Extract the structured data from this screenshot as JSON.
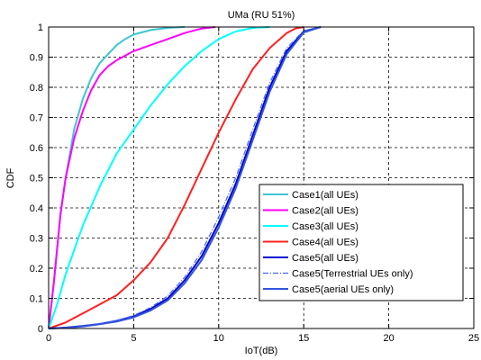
{
  "chart_data": {
    "type": "line",
    "title": "UMa (RU 51%)",
    "xlabel": "IoT(dB)",
    "ylabel": "CDF",
    "xlim": [
      0,
      25
    ],
    "ylim": [
      0,
      1
    ],
    "xticks": [
      "0",
      "5",
      "10",
      "15",
      "20",
      "25"
    ],
    "yticks": [
      "0",
      "0.1",
      "0.2",
      "0.3",
      "0.4",
      "0.5",
      "0.6",
      "0.7",
      "0.8",
      "0.9",
      "1"
    ],
    "grid": true,
    "legend_position": "lower-right",
    "series": [
      {
        "name": "Case1(all UEs)",
        "color": "#3cc6d2",
        "style": "solid",
        "x": [
          0,
          0.3,
          0.7,
          1.0,
          1.5,
          2.0,
          2.5,
          3.0,
          3.5,
          4.0,
          4.5,
          5.0,
          6.0,
          7.0,
          8.0
        ],
        "y": [
          0,
          0.15,
          0.38,
          0.5,
          0.66,
          0.76,
          0.83,
          0.88,
          0.91,
          0.94,
          0.96,
          0.975,
          0.99,
          0.997,
          1.0
        ]
      },
      {
        "name": "Case2(all UEs)",
        "color": "#ff00ff",
        "style": "solid",
        "x": [
          0,
          0.3,
          0.7,
          1.0,
          1.5,
          2.0,
          2.5,
          3.0,
          3.5,
          4.0,
          5.0,
          6.0,
          7.0,
          8.0,
          9.0,
          9.8
        ],
        "y": [
          0,
          0.15,
          0.38,
          0.5,
          0.63,
          0.72,
          0.79,
          0.84,
          0.87,
          0.89,
          0.92,
          0.94,
          0.96,
          0.98,
          0.995,
          1.0
        ]
      },
      {
        "name": "Case3(all UEs)",
        "color": "#00ffff",
        "style": "solid",
        "x": [
          0,
          0.5,
          1.0,
          1.5,
          2.0,
          3.0,
          4.0,
          5.0,
          6.0,
          7.0,
          8.0,
          9.0,
          10.0,
          11.0,
          12.0,
          13.0
        ],
        "y": [
          0,
          0.08,
          0.18,
          0.26,
          0.34,
          0.47,
          0.58,
          0.66,
          0.74,
          0.81,
          0.87,
          0.92,
          0.96,
          0.985,
          0.997,
          1.0
        ]
      },
      {
        "name": "Case4(all UEs)",
        "color": "#ff2020",
        "style": "solid",
        "x": [
          0,
          1.0,
          2.0,
          3.0,
          4.0,
          5.0,
          6.0,
          7.0,
          8.0,
          9.0,
          10.0,
          11.0,
          12.0,
          13.0,
          14.0,
          14.5,
          15.0
        ],
        "y": [
          0,
          0.02,
          0.05,
          0.08,
          0.11,
          0.16,
          0.22,
          0.3,
          0.41,
          0.53,
          0.65,
          0.76,
          0.86,
          0.93,
          0.98,
          0.995,
          1.0
        ]
      },
      {
        "name": "Case5(all UEs)",
        "color": "#0000cc",
        "style": "solid",
        "x": [
          0,
          1.0,
          2.0,
          3.0,
          4.0,
          5.0,
          6.0,
          7.0,
          8.0,
          9.0,
          10.0,
          11.0,
          12.0,
          13.0,
          14.0,
          15.0,
          16.0
        ],
        "y": [
          0,
          0.003,
          0.008,
          0.015,
          0.025,
          0.04,
          0.065,
          0.1,
          0.16,
          0.24,
          0.35,
          0.48,
          0.64,
          0.8,
          0.92,
          0.985,
          1.0
        ]
      },
      {
        "name": "Case5(Terrestrial UEs only)",
        "color": "#4466ff",
        "style": "dashdot",
        "x": [
          0,
          1.0,
          2.0,
          3.0,
          4.0,
          5.0,
          6.0,
          7.0,
          8.0,
          9.0,
          10.0,
          11.0,
          12.0,
          13.0,
          14.0,
          15.0,
          16.0
        ],
        "y": [
          0,
          0.003,
          0.008,
          0.016,
          0.027,
          0.043,
          0.07,
          0.108,
          0.17,
          0.255,
          0.37,
          0.5,
          0.66,
          0.815,
          0.93,
          0.988,
          1.0
        ]
      },
      {
        "name": "Case5(aerial UEs only)",
        "color": "#3355dd",
        "style": "solid",
        "x": [
          0,
          1.0,
          2.0,
          3.0,
          4.0,
          5.0,
          6.0,
          7.0,
          8.0,
          9.0,
          10.0,
          11.0,
          12.0,
          13.0,
          14.0,
          15.0,
          16.0
        ],
        "y": [
          0,
          0.002,
          0.007,
          0.014,
          0.023,
          0.037,
          0.06,
          0.093,
          0.15,
          0.227,
          0.335,
          0.465,
          0.625,
          0.785,
          0.91,
          0.982,
          1.0
        ]
      }
    ]
  }
}
